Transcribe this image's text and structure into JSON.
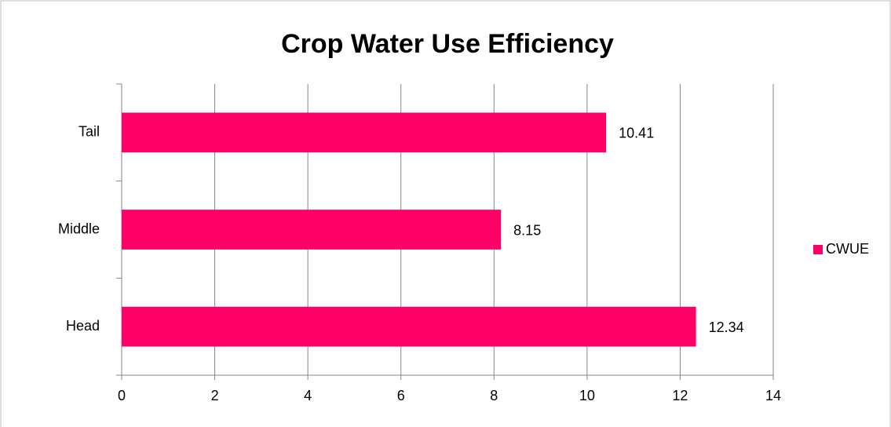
{
  "chart_data": {
    "type": "barh",
    "title": "Crop Water Use Efficiency",
    "categories": [
      "Tail",
      "Middle",
      "Head"
    ],
    "series": [
      {
        "name": "CWUE",
        "color": "#ff0066",
        "values": [
          10.41,
          8.15,
          12.34
        ]
      }
    ],
    "xlim": [
      0,
      14
    ],
    "xticks": [
      0,
      2,
      4,
      6,
      8,
      10,
      12,
      14
    ],
    "grid": true,
    "legend": "right"
  }
}
